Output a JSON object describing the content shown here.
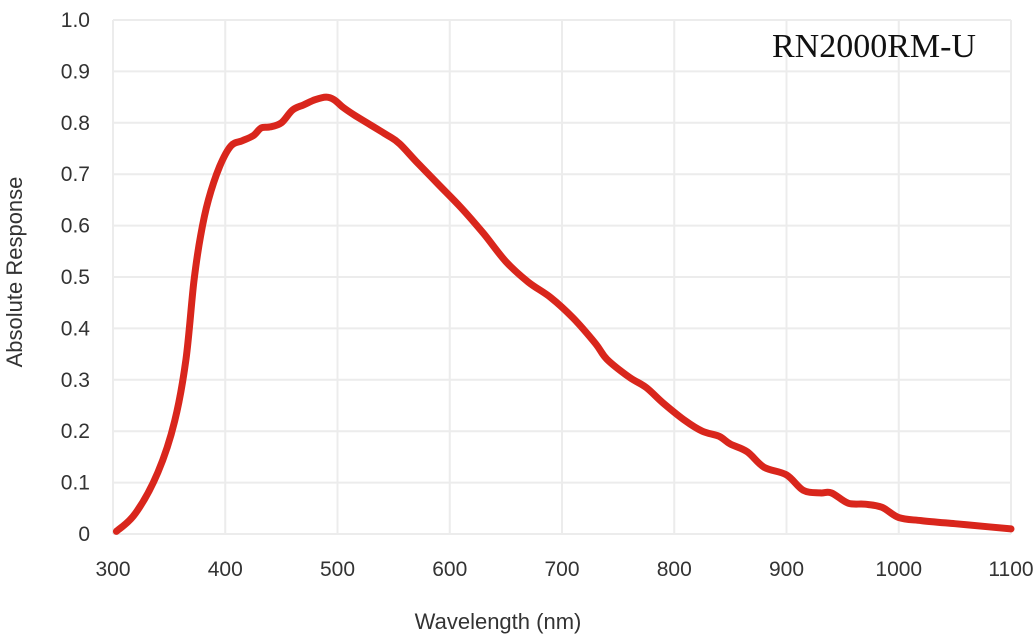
{
  "chart_data": {
    "type": "line",
    "title": "RN2000RM-U",
    "xlabel": "Wavelength (nm)",
    "ylabel": "Absolute Response",
    "xlim": [
      300,
      1100
    ],
    "ylim": [
      0,
      1.0
    ],
    "x_ticks": [
      "300",
      "400",
      "500",
      "600",
      "700",
      "800",
      "900",
      "1000",
      "1100"
    ],
    "y_ticks": [
      "0",
      "0.1",
      "0.2",
      "0.3",
      "0.4",
      "0.5",
      "0.6",
      "0.7",
      "0.8",
      "0.9",
      "1.0"
    ],
    "grid": true,
    "legend": "none",
    "series": [
      {
        "color": "#d9261c",
        "x": [
          303,
          320,
          340,
          355,
          365,
          372,
          378,
          385,
          395,
          405,
          415,
          425,
          432,
          440,
          450,
          460,
          470,
          480,
          490,
          497,
          505,
          515,
          530,
          545,
          555,
          570,
          590,
          610,
          630,
          650,
          670,
          690,
          710,
          730,
          740,
          760,
          775,
          790,
          810,
          825,
          840,
          850,
          865,
          880,
          900,
          915,
          930,
          940,
          955,
          970,
          985,
          1000,
          1020,
          1050,
          1080,
          1100
        ],
        "y": [
          0.005,
          0.04,
          0.12,
          0.22,
          0.34,
          0.49,
          0.58,
          0.65,
          0.715,
          0.755,
          0.765,
          0.775,
          0.79,
          0.792,
          0.8,
          0.825,
          0.835,
          0.845,
          0.85,
          0.845,
          0.83,
          0.815,
          0.795,
          0.775,
          0.76,
          0.725,
          0.68,
          0.635,
          0.585,
          0.53,
          0.49,
          0.46,
          0.42,
          0.37,
          0.34,
          0.305,
          0.285,
          0.255,
          0.22,
          0.2,
          0.19,
          0.175,
          0.16,
          0.13,
          0.115,
          0.085,
          0.08,
          0.08,
          0.06,
          0.058,
          0.052,
          0.032,
          0.026,
          0.02,
          0.014,
          0.01
        ]
      }
    ]
  }
}
